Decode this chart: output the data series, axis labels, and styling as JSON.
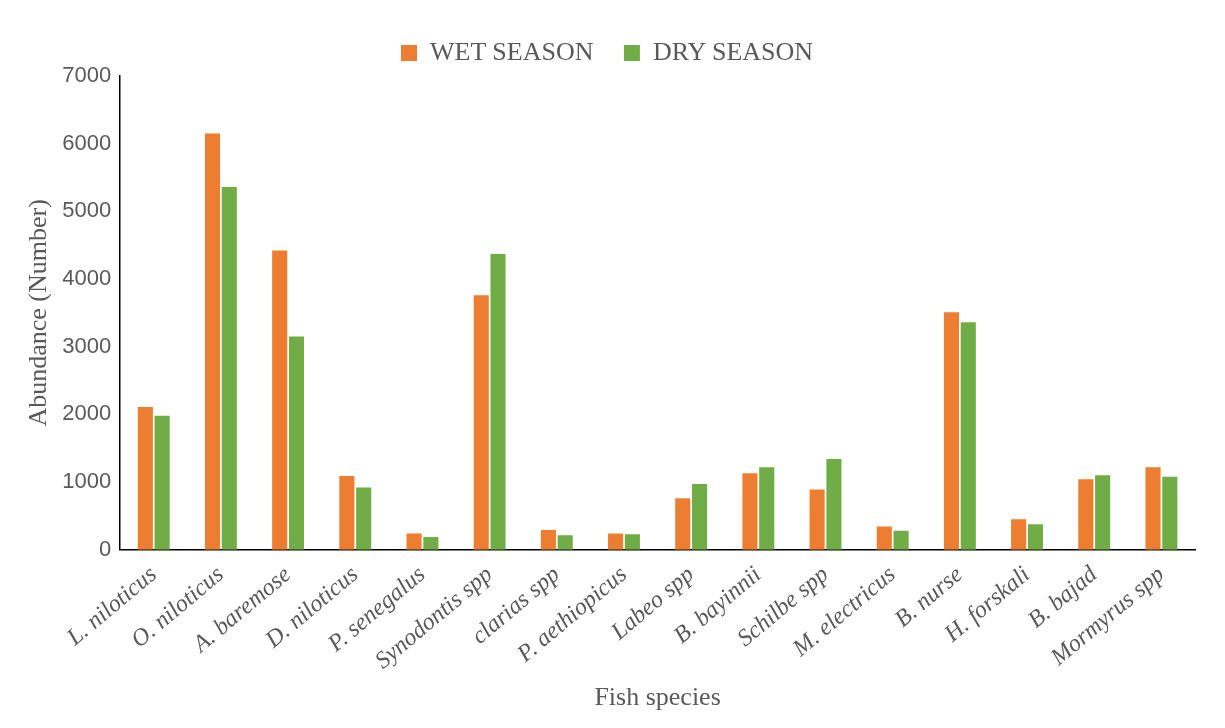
{
  "chart_data": {
    "type": "bar",
    "xlabel": "Fish species",
    "ylabel": "Abundance (Number)",
    "categories": [
      "L. niloticus",
      "O. niloticus",
      "A. baremose",
      "D. niloticus",
      "P. senegalus",
      "Synodontis spp",
      "clarias spp",
      "P. aethiopicus",
      "Labeo spp",
      "B. bayinnii",
      "Schilbe spp",
      "M. electricus",
      "B. nurse",
      "H. forskali",
      "B. bajad",
      "Mormyrus spp"
    ],
    "series": [
      {
        "name": "WET SEASON",
        "color": "#ed7d31",
        "values": [
          2110,
          6150,
          4420,
          1090,
          240,
          3760,
          290,
          240,
          760,
          1130,
          890,
          345,
          3510,
          450,
          1040,
          1220
        ]
      },
      {
        "name": "DRY SEASON",
        "color": "#70ad47",
        "values": [
          1980,
          5360,
          3150,
          920,
          190,
          4370,
          215,
          230,
          970,
          1220,
          1340,
          280,
          3360,
          375,
          1100,
          1080
        ]
      }
    ],
    "ylim": [
      0,
      7000
    ],
    "yticks": [
      0,
      1000,
      2000,
      3000,
      4000,
      5000,
      6000,
      7000
    ],
    "grid": false,
    "legend": "top"
  }
}
